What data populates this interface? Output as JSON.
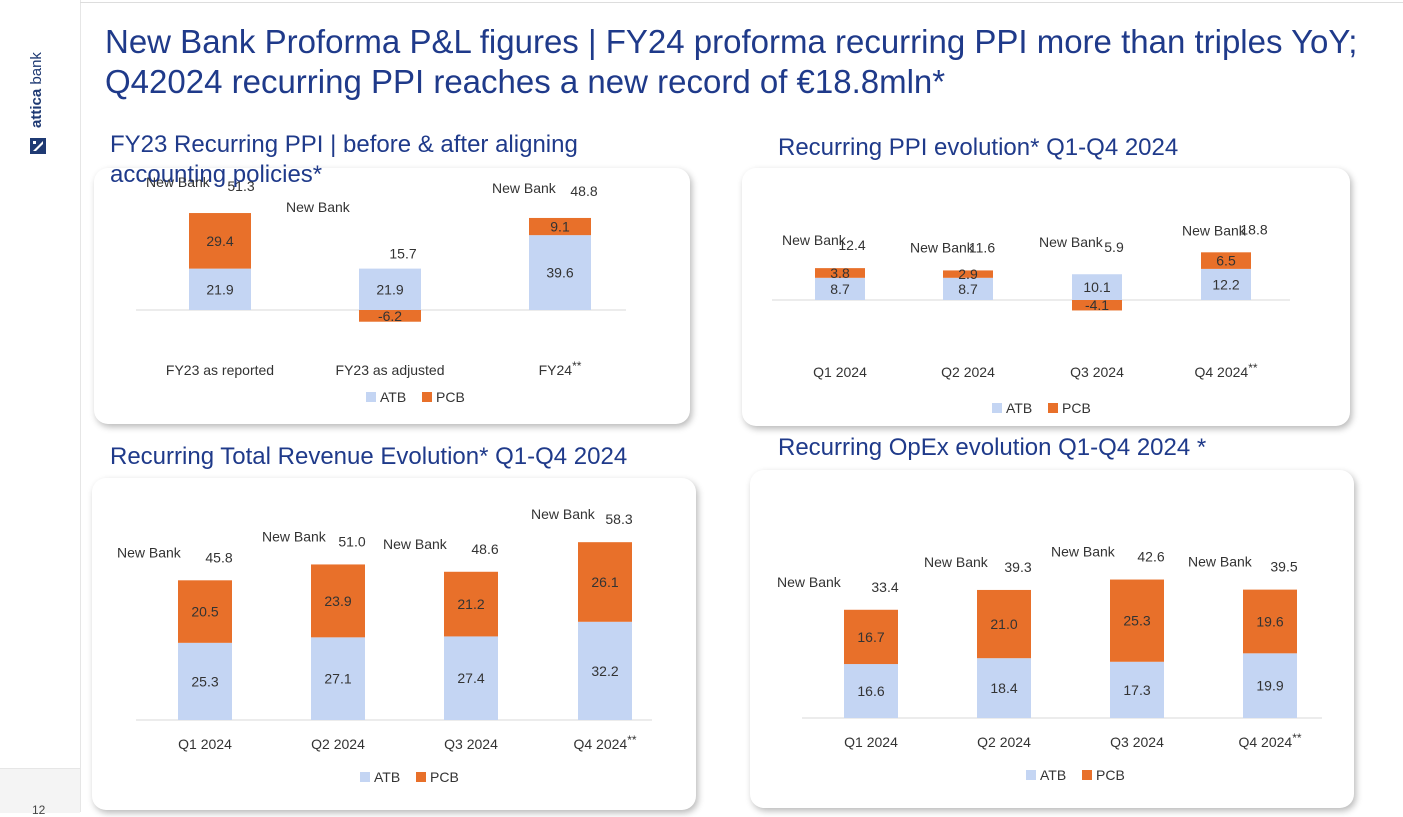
{
  "page": {
    "headline": "New Bank Proforma P&L figures | FY24 proforma recurring PPI more than triples YoY; Q42024 recurring PPI reaches a new record of €18.8mln*",
    "brand_bold": "attica",
    "brand_light": " bank",
    "page_number": "12"
  },
  "colors": {
    "atb": "#c4d5f3",
    "pcb": "#e8702a",
    "title": "#1f3a8a",
    "text": "#333333"
  },
  "chart_data": [
    {
      "type": "bar",
      "title": "FY23 Recurring PPI | before & after aligning accounting policies*",
      "categories": [
        "FY23 as reported",
        "FY23 as adjusted",
        "FY24"
      ],
      "category_marks": [
        "",
        "",
        "**"
      ],
      "series": [
        {
          "name": "ATB",
          "values": [
            21.9,
            21.9,
            39.6
          ]
        },
        {
          "name": "PCB",
          "values": [
            29.4,
            -6.2,
            9.1
          ]
        }
      ],
      "totals": [
        51.3,
        15.7,
        48.8
      ],
      "total_label": "New Bank",
      "total_label_show": [
        true,
        true,
        true
      ],
      "legend": [
        "ATB",
        "PCB"
      ]
    },
    {
      "type": "bar",
      "title": "Recurring PPI evolution* Q1-Q4 2024",
      "categories": [
        "Q1 2024",
        "Q2 2024",
        "Q3 2024",
        "Q4 2024"
      ],
      "category_marks": [
        "",
        "",
        "",
        "**"
      ],
      "series": [
        {
          "name": "ATB",
          "values": [
            8.7,
            8.7,
            10.1,
            12.2
          ]
        },
        {
          "name": "PCB",
          "values": [
            3.8,
            2.9,
            -4.1,
            6.5
          ]
        }
      ],
      "totals": [
        12.4,
        11.6,
        5.9,
        18.8
      ],
      "total_label": "New Bank",
      "total_label_show": [
        true,
        true,
        true,
        true
      ],
      "legend": [
        "ATB",
        "PCB"
      ]
    },
    {
      "type": "bar",
      "title": "Recurring Total Revenue Evolution* Q1-Q4 2024",
      "categories": [
        "Q1 2024",
        "Q2 2024",
        "Q3 2024",
        "Q4 2024"
      ],
      "category_marks": [
        "",
        "",
        "",
        "**"
      ],
      "series": [
        {
          "name": "ATB",
          "values": [
            25.3,
            27.1,
            27.4,
            32.2
          ]
        },
        {
          "name": "PCB",
          "values": [
            20.5,
            23.9,
            21.2,
            26.1
          ]
        }
      ],
      "totals": [
        45.8,
        51.0,
        48.6,
        58.3
      ],
      "total_label": "New Bank",
      "total_label_show": [
        true,
        true,
        true,
        true
      ],
      "legend": [
        "ATB",
        "PCB"
      ]
    },
    {
      "type": "bar",
      "title": "Recurring OpEx evolution Q1-Q4 2024 *",
      "categories": [
        "Q1 2024",
        "Q2 2024",
        "Q3 2024",
        "Q4 2024"
      ],
      "category_marks": [
        "",
        "",
        "",
        "**"
      ],
      "series": [
        {
          "name": "ATB",
          "values": [
            16.6,
            18.4,
            17.3,
            19.9
          ]
        },
        {
          "name": "PCB",
          "values": [
            16.7,
            21.0,
            25.3,
            19.6
          ]
        }
      ],
      "totals": [
        33.4,
        39.3,
        42.6,
        39.5
      ],
      "total_label": "New Bank",
      "total_label_show": [
        true,
        true,
        true,
        true
      ],
      "legend": [
        "ATB",
        "PCB"
      ]
    }
  ]
}
